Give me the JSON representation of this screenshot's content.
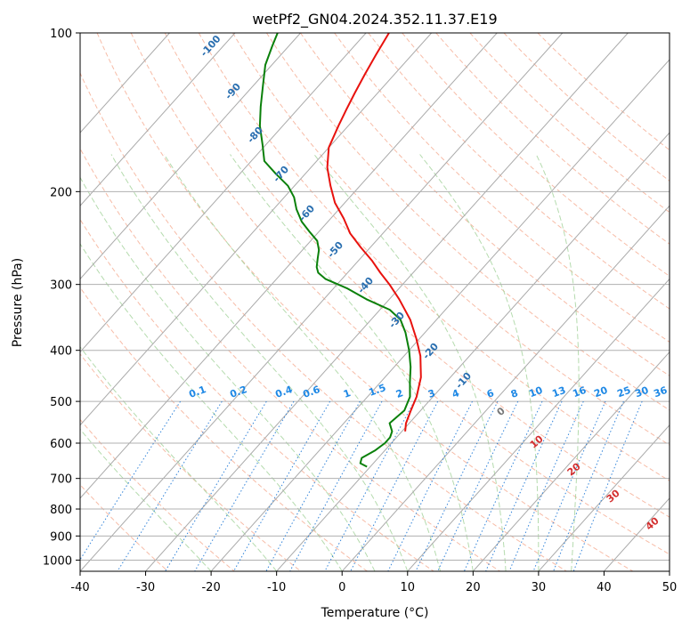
{
  "chart_data": {
    "type": "line",
    "title": "wetPf2_GN04.2024.352.11.37.E19",
    "xlabel": "Temperature (°C)",
    "ylabel": "Pressure (hPa)",
    "xlim": [
      -40,
      50
    ],
    "ylim": [
      1050,
      100
    ],
    "y_scale": "log",
    "x_ticks": [
      -40,
      -30,
      -20,
      -10,
      0,
      10,
      20,
      30,
      40,
      50
    ],
    "y_ticks": [
      100,
      200,
      300,
      400,
      500,
      600,
      700,
      800,
      900,
      1000
    ],
    "grid": true,
    "series": [
      {
        "role": "temperature",
        "color": "#e8120e",
        "points": [
          {
            "p": 570,
            "t": -9.5
          },
          {
            "p": 550,
            "t": -10.5
          },
          {
            "p": 520,
            "t": -11.5
          },
          {
            "p": 490,
            "t": -12.5
          },
          {
            "p": 450,
            "t": -14.5
          },
          {
            "p": 410,
            "t": -17.5
          },
          {
            "p": 380,
            "t": -20.5
          },
          {
            "p": 350,
            "t": -24.0
          },
          {
            "p": 320,
            "t": -28.5
          },
          {
            "p": 300,
            "t": -32.0
          },
          {
            "p": 285,
            "t": -35.0
          },
          {
            "p": 270,
            "t": -38.0
          },
          {
            "p": 255,
            "t": -41.5
          },
          {
            "p": 240,
            "t": -45.0
          },
          {
            "p": 225,
            "t": -48.0
          },
          {
            "p": 210,
            "t": -51.5
          },
          {
            "p": 195,
            "t": -54.5
          },
          {
            "p": 180,
            "t": -57.5
          },
          {
            "p": 165,
            "t": -60.0
          },
          {
            "p": 150,
            "t": -61.5
          },
          {
            "p": 140,
            "t": -62.5
          },
          {
            "p": 130,
            "t": -63.5
          },
          {
            "p": 120,
            "t": -64.5
          },
          {
            "p": 110,
            "t": -65.5
          },
          {
            "p": 100,
            "t": -66.5
          }
        ]
      },
      {
        "role": "dewpoint",
        "color": "#0a800a",
        "points": [
          {
            "p": 665,
            "t": -10.5
          },
          {
            "p": 655,
            "t": -12.0
          },
          {
            "p": 640,
            "t": -12.5
          },
          {
            "p": 620,
            "t": -11.5
          },
          {
            "p": 600,
            "t": -11.0
          },
          {
            "p": 585,
            "t": -11.0
          },
          {
            "p": 570,
            "t": -11.5
          },
          {
            "p": 550,
            "t": -13.0
          },
          {
            "p": 520,
            "t": -12.5
          },
          {
            "p": 490,
            "t": -13.5
          },
          {
            "p": 460,
            "t": -15.5
          },
          {
            "p": 430,
            "t": -17.5
          },
          {
            "p": 400,
            "t": -20.0
          },
          {
            "p": 370,
            "t": -23.0
          },
          {
            "p": 350,
            "t": -25.5
          },
          {
            "p": 335,
            "t": -28.5
          },
          {
            "p": 320,
            "t": -33.5
          },
          {
            "p": 305,
            "t": -38.0
          },
          {
            "p": 293,
            "t": -42.5
          },
          {
            "p": 285,
            "t": -44.5
          },
          {
            "p": 278,
            "t": -45.5
          },
          {
            "p": 268,
            "t": -46.5
          },
          {
            "p": 258,
            "t": -47.5
          },
          {
            "p": 248,
            "t": -49.0
          },
          {
            "p": 238,
            "t": -51.5
          },
          {
            "p": 228,
            "t": -54.0
          },
          {
            "p": 216,
            "t": -56.5
          },
          {
            "p": 205,
            "t": -58.5
          },
          {
            "p": 195,
            "t": -61.0
          },
          {
            "p": 185,
            "t": -64.5
          },
          {
            "p": 175,
            "t": -68.0
          },
          {
            "p": 163,
            "t": -70.5
          },
          {
            "p": 150,
            "t": -73.5
          },
          {
            "p": 138,
            "t": -76.0
          },
          {
            "p": 126,
            "t": -78.5
          },
          {
            "p": 115,
            "t": -81.0
          },
          {
            "p": 106,
            "t": -82.5
          },
          {
            "p": 100,
            "t": -83.5
          }
        ]
      }
    ],
    "reference_lines": {
      "isotherms": {
        "color": "#aaaaaa",
        "values": [
          -100,
          -90,
          -80,
          -70,
          -60,
          -50,
          -40,
          -30,
          -20,
          -10,
          0,
          10,
          20,
          30,
          40,
          50
        ]
      },
      "dry_adiabats": {
        "color": "#f4a58a",
        "values_c": [
          -30,
          -20,
          -10,
          0,
          10,
          20,
          30,
          40,
          50,
          60,
          70,
          80,
          90,
          100,
          110,
          120,
          130,
          140,
          150,
          160,
          170
        ]
      },
      "moist_adiabats": {
        "color": "#a8d5a0",
        "values_c": [
          -20,
          -10,
          0,
          5,
          10,
          15,
          20,
          25,
          30,
          35
        ]
      },
      "mixing_ratio": {
        "color": "#1e78d6",
        "label_pressure": 500,
        "values": [
          0.1,
          0.2,
          0.4,
          0.6,
          1,
          1.5,
          2,
          3,
          4,
          6,
          8,
          10,
          13,
          16,
          20,
          25,
          30,
          36
        ]
      }
    },
    "annotations": {
      "isotherm_labels": {
        "color": "#2a6fb0",
        "values": [
          "-100",
          "-90",
          "-80",
          "-70",
          "-60",
          "-50",
          "-40",
          "-30",
          "-20",
          "-10"
        ]
      },
      "mixing_ratio_labels": {
        "color": "#1e88e5",
        "values": [
          "0.1",
          "0.2",
          "0.4",
          "0.6",
          "1",
          "1.5",
          "2",
          "3",
          "4",
          "6",
          "8",
          "10",
          "13",
          "16",
          "20",
          "25",
          "30",
          "36"
        ]
      },
      "warm_isotherm_labels": {
        "color": "#d32f2f",
        "values": [
          "10",
          "20",
          "30",
          "40"
        ]
      },
      "zero_label": {
        "color": "#777777",
        "value": "0"
      }
    }
  }
}
